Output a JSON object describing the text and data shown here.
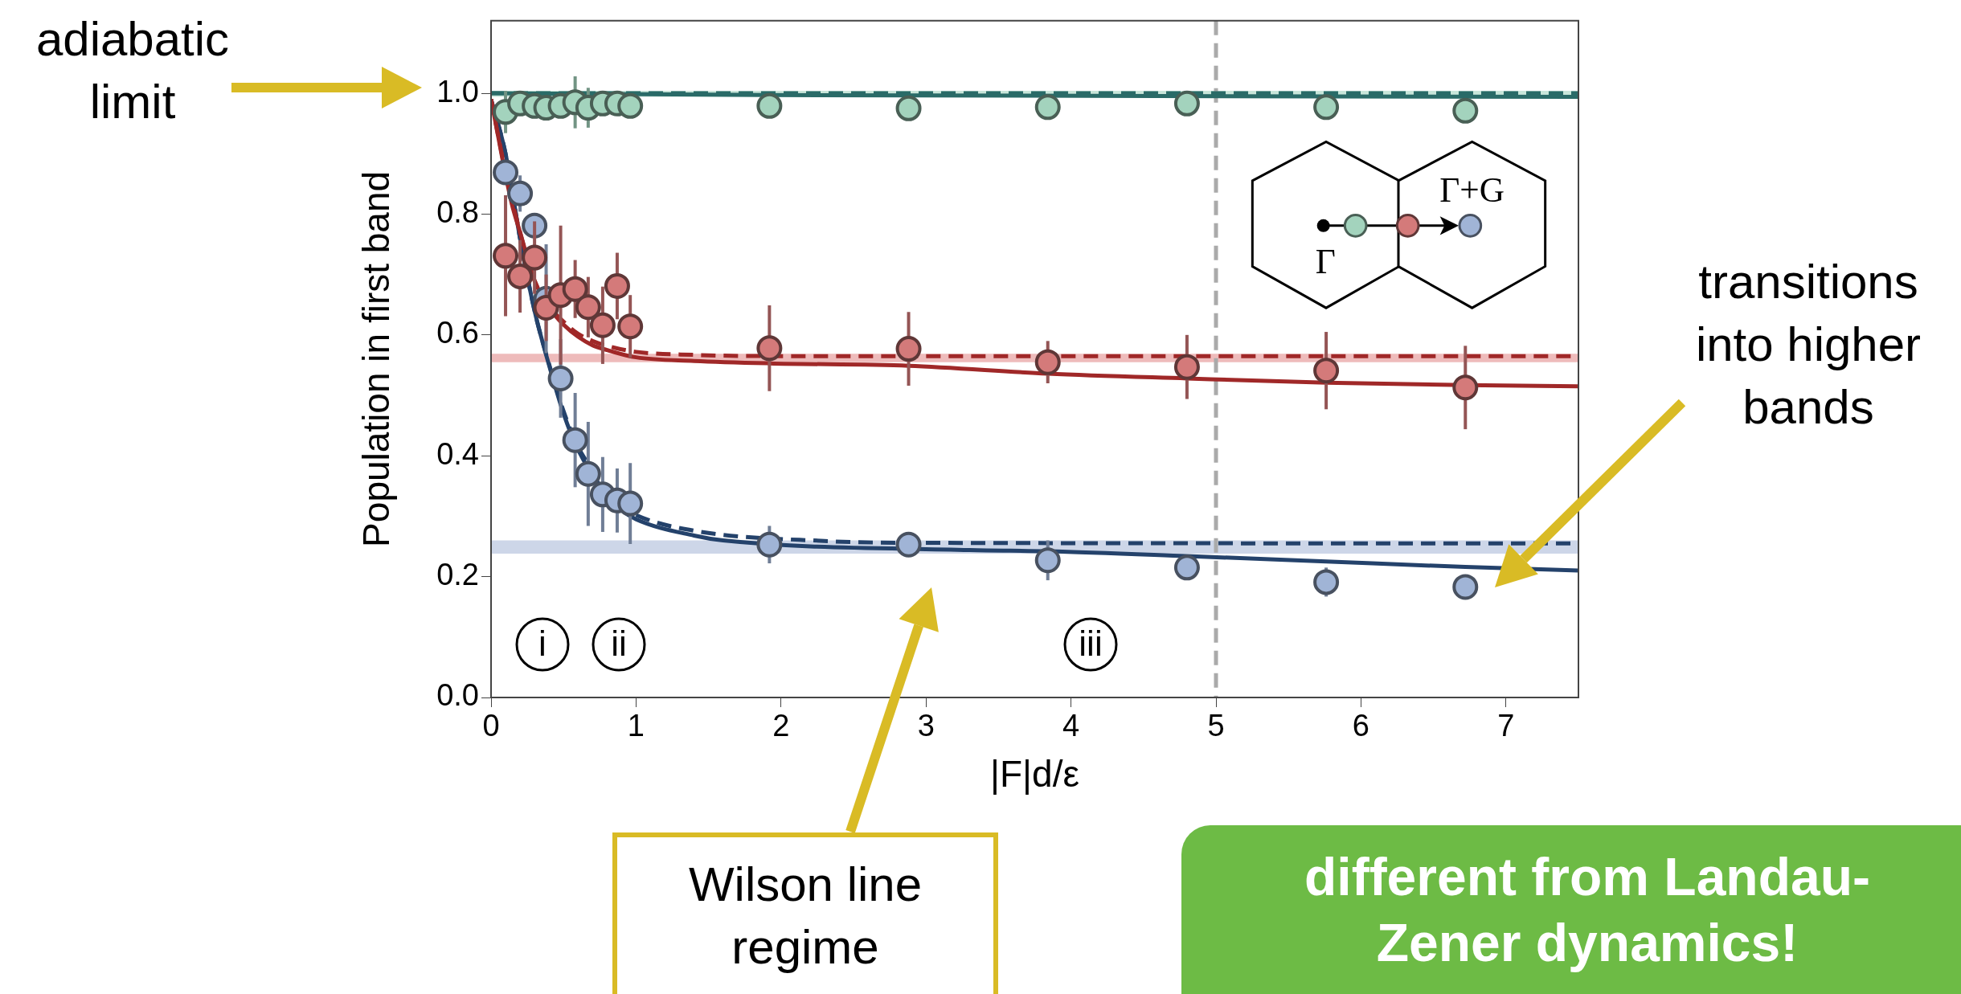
{
  "chart_data": {
    "type": "scatter",
    "xlabel": "|F|d/ε",
    "ylabel": "Population in first band",
    "xlim": [
      0,
      7.5
    ],
    "ylim": [
      0,
      1.12
    ],
    "xticks": [
      0,
      1,
      2,
      3,
      4,
      5,
      6,
      7
    ],
    "yticks": [
      {
        "value": 0,
        "label": "0.0"
      },
      {
        "value": 0.2,
        "label": "0.2"
      },
      {
        "value": 0.4,
        "label": "0.4"
      },
      {
        "value": 0.6,
        "label": "0.6"
      },
      {
        "value": 0.8,
        "label": "0.8"
      },
      {
        "value": 1,
        "label": "1.0"
      }
    ],
    "grid": false,
    "legend": false,
    "series": [
      {
        "marker": "circle",
        "color": "#a3d3bd",
        "x": [
          0.1,
          0.2,
          0.3,
          0.38,
          0.48,
          0.58,
          0.67,
          0.77,
          0.87,
          0.96,
          1.92,
          2.88,
          3.84,
          4.8,
          5.76,
          6.72
        ],
        "values": [
          0.969,
          0.983,
          0.979,
          0.976,
          0.979,
          0.985,
          0.976,
          0.983,
          0.983,
          0.979,
          0.979,
          0.975,
          0.977,
          0.983,
          0.977,
          0.971
        ],
        "errors": [
          0.035,
          null,
          null,
          null,
          null,
          0.043,
          0.033,
          null,
          null,
          null,
          null,
          null,
          null,
          0.015,
          null,
          null
        ]
      },
      {
        "marker": "circle",
        "color": "#d47a7a",
        "x": [
          0.1,
          0.2,
          0.3,
          0.38,
          0.48,
          0.58,
          0.67,
          0.77,
          0.87,
          0.96,
          1.92,
          2.88,
          3.84,
          4.8,
          5.76,
          6.72
        ],
        "values": [
          0.731,
          0.697,
          0.728,
          0.645,
          0.666,
          0.676,
          0.646,
          0.616,
          0.681,
          0.614,
          0.578,
          0.577,
          0.555,
          0.547,
          0.541,
          0.513
        ],
        "errors": [
          0.1,
          0.06,
          0.06,
          0.055,
          0.115,
          0.048,
          0.05,
          0.064,
          0.055,
          0.052,
          0.071,
          0.061,
          0.035,
          0.053,
          0.064,
          0.069
        ]
      },
      {
        "marker": "circle",
        "color": "#a0b4d6",
        "x": [
          0.1,
          0.2,
          0.3,
          0.38,
          0.48,
          0.58,
          0.67,
          0.77,
          0.87,
          0.96,
          1.92,
          2.88,
          3.84,
          4.8,
          5.76,
          6.72
        ],
        "values": [
          0.869,
          0.834,
          0.781,
          0.66,
          0.528,
          0.426,
          0.37,
          0.336,
          0.326,
          0.321,
          0.253,
          0.253,
          0.227,
          0.215,
          0.191,
          0.183
        ],
        "errors": [
          null,
          0.03,
          0.02,
          0.09,
          0.065,
          0.078,
          0.086,
          0.062,
          0.053,
          0.067,
          0.031,
          0.017,
          0.033,
          0.012,
          0.024,
          0.017
        ]
      },
      {
        "type": "line",
        "marker": "none",
        "color": "#2a6b68",
        "line_style": "solid",
        "x": [
          0,
          1.92,
          7.5
        ],
        "values": [
          1.0,
          0.997,
          0.994
        ]
      },
      {
        "type": "line",
        "marker": "none",
        "color": "#2a6b68",
        "line_style": "dashed",
        "x": [
          0,
          7.5
        ],
        "values": [
          1.0,
          1.0
        ]
      },
      {
        "type": "line",
        "marker": "none",
        "color": "#a02828",
        "line_style": "solid",
        "x": [
          0,
          0.14,
          0.2,
          0.3,
          0.4,
          0.5,
          0.6,
          0.7,
          0.8,
          1.0,
          1.4,
          1.92,
          2.88,
          3.84,
          4.8,
          5.76,
          6.72,
          7.5
        ],
        "values": [
          0.99,
          0.82,
          0.77,
          0.69,
          0.645,
          0.617,
          0.597,
          0.583,
          0.575,
          0.563,
          0.557,
          0.553,
          0.549,
          0.536,
          0.528,
          0.521,
          0.517,
          0.515
        ]
      },
      {
        "type": "line",
        "marker": "none",
        "color": "#a02828",
        "line_style": "dashed",
        "x": [
          0,
          0.1,
          0.2,
          0.3,
          0.4,
          0.5,
          0.6,
          0.7,
          0.8,
          1.0,
          1.4,
          1.92,
          7.5
        ],
        "values": [
          0.99,
          0.87,
          0.77,
          0.69,
          0.648,
          0.622,
          0.602,
          0.59,
          0.582,
          0.572,
          0.567,
          0.565,
          0.565
        ]
      },
      {
        "type": "line",
        "marker": "none",
        "color": "#24426b",
        "line_style": "solid",
        "x": [
          0,
          0.1,
          0.2,
          0.3,
          0.4,
          0.5,
          0.6,
          0.8,
          0.9,
          1.0,
          1.4,
          1.6,
          3.3,
          3.84,
          4.8,
          5.76,
          6.72,
          7.5
        ],
        "values": [
          0.99,
          0.9,
          0.76,
          0.64,
          0.55,
          0.47,
          0.41,
          0.335,
          0.31,
          0.295,
          0.268,
          0.26,
          0.244,
          0.242,
          0.234,
          0.225,
          0.216,
          0.21
        ]
      },
      {
        "type": "line",
        "marker": "none",
        "color": "#24426b",
        "line_style": "dashed",
        "x": [
          0,
          0.1,
          0.2,
          0.3,
          0.4,
          0.5,
          0.6,
          0.7,
          0.8,
          0.9,
          1.0,
          1.4,
          2.3,
          2.88,
          7.5
        ],
        "values": [
          0.99,
          0.9,
          0.76,
          0.64,
          0.552,
          0.474,
          0.415,
          0.376,
          0.342,
          0.317,
          0.302,
          0.276,
          0.259,
          0.256,
          0.255
        ]
      }
    ],
    "bands": [
      {
        "axis": "y",
        "from": 0.994,
        "to": 1.004,
        "color": "#c9e6da"
      },
      {
        "axis": "y",
        "from": 0.555,
        "to": 0.569,
        "color": "#eebbbb"
      },
      {
        "axis": "y",
        "from": 0.238,
        "to": 0.26,
        "color": "#cdd6e8"
      }
    ],
    "ref_lines": [
      {
        "axis": "x",
        "value": 5,
        "color": "#aaaaaa",
        "line_style": "dashed"
      }
    ],
    "annotations": [
      "adiabatic limit",
      "transitions into higher bands",
      "Wilson line regime",
      "different from Landau-Zener dynamics!",
      "Γ",
      "Γ+G",
      "i",
      "ii",
      "iii"
    ]
  }
}
